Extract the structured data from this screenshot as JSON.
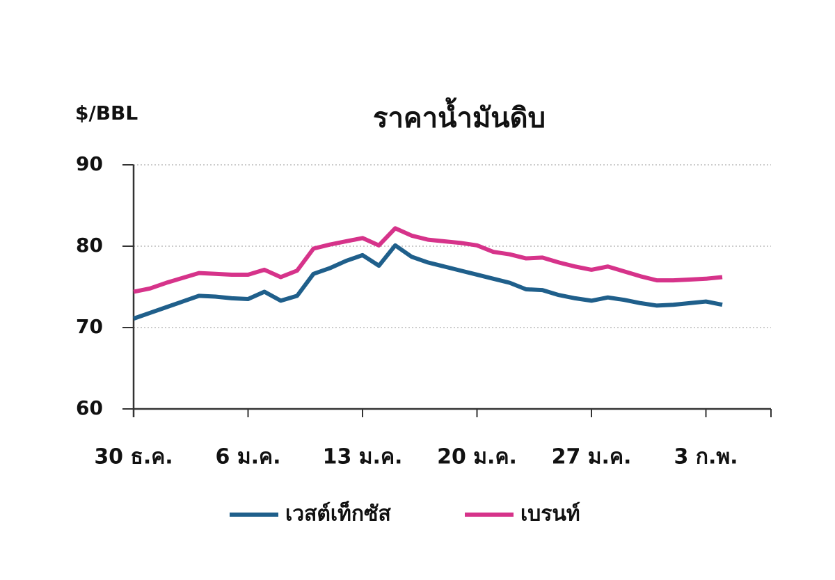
{
  "chart_data": {
    "type": "line",
    "title": "ราคาน้ำมันดิบ",
    "y_label": "$/BBL",
    "categories": [
      "30 ธ.ค.",
      null,
      null,
      null,
      null,
      null,
      null,
      "6 ม.ค.",
      null,
      null,
      null,
      null,
      null,
      null,
      "13 ม.ค.",
      null,
      null,
      null,
      null,
      null,
      null,
      "20 ม.ค.",
      null,
      null,
      null,
      null,
      null,
      null,
      "27 ม.ค.",
      null,
      null,
      null,
      null,
      null,
      null,
      "3 ก.พ.",
      null
    ],
    "series": [
      {
        "name": "เวสต์เท็กซัส",
        "color": "#1f5f8b",
        "values": [
          71.1,
          71.8,
          72.5,
          73.2,
          73.9,
          73.8,
          73.6,
          73.5,
          74.4,
          73.3,
          73.9,
          76.6,
          77.3,
          78.2,
          78.9,
          77.6,
          80.1,
          78.7,
          78.0,
          77.5,
          77.0,
          76.5,
          76.0,
          75.5,
          74.7,
          74.6,
          74.0,
          73.6,
          73.3,
          73.7,
          73.4,
          73.0,
          72.7,
          72.8,
          73.0,
          73.2,
          72.8
        ]
      },
      {
        "name": "เบรนท์",
        "color": "#d6338a",
        "values": [
          74.4,
          74.8,
          75.5,
          76.1,
          76.7,
          76.6,
          76.5,
          76.5,
          77.1,
          76.2,
          77.0,
          79.7,
          80.2,
          80.6,
          81.0,
          80.1,
          82.2,
          81.3,
          80.8,
          80.6,
          80.4,
          80.1,
          79.3,
          79.0,
          78.5,
          78.6,
          78.0,
          77.5,
          77.1,
          77.5,
          76.9,
          76.3,
          75.8,
          75.8,
          75.9,
          76.0,
          76.2
        ]
      }
    ],
    "ylim": [
      60,
      90
    ],
    "yticks": [
      60,
      70,
      80,
      90
    ],
    "grid": true
  }
}
